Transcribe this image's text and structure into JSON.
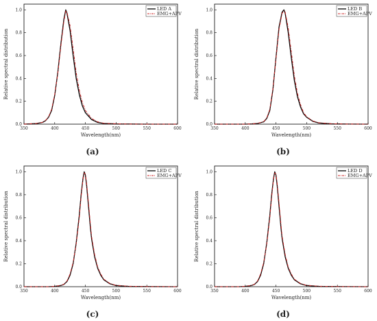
{
  "chart_data": [
    {
      "type": "line",
      "panel_label": "(a)",
      "xlabel": "Wavelength(nm)",
      "ylabel": "Relative spectral distribution",
      "xlim": [
        350,
        600
      ],
      "ylim": [
        0,
        1.05
      ],
      "xticks": [
        "350",
        "400",
        "450",
        "500",
        "550",
        "600"
      ],
      "yticks": [
        "0.0",
        "0.2",
        "0.4",
        "0.6",
        "0.8",
        "1.0"
      ],
      "legend_position": "top-right",
      "series": [
        {
          "name": "LED A",
          "color": "#000000",
          "style": "solid",
          "x": [
            350,
            370,
            380,
            385,
            390,
            395,
            400,
            405,
            410,
            415,
            418,
            420,
            425,
            430,
            435,
            440,
            445,
            450,
            460,
            470,
            480,
            500,
            520,
            550,
            600
          ],
          "y": [
            0,
            0.005,
            0.015,
            0.03,
            0.06,
            0.12,
            0.25,
            0.45,
            0.7,
            0.92,
            1.0,
            0.97,
            0.82,
            0.6,
            0.4,
            0.26,
            0.16,
            0.1,
            0.04,
            0.015,
            0.006,
            0.002,
            0.001,
            0,
            0
          ]
        },
        {
          "name": "EMG+APV",
          "color": "#cc2222",
          "style": "dash-dot",
          "x": [
            350,
            370,
            380,
            385,
            390,
            395,
            400,
            405,
            410,
            415,
            418,
            420,
            425,
            430,
            435,
            440,
            445,
            450,
            460,
            470,
            480,
            500,
            520,
            550,
            600
          ],
          "y": [
            0,
            0.006,
            0.016,
            0.032,
            0.065,
            0.13,
            0.26,
            0.44,
            0.68,
            0.9,
            0.99,
            0.98,
            0.86,
            0.66,
            0.45,
            0.3,
            0.19,
            0.12,
            0.05,
            0.02,
            0.008,
            0.003,
            0.001,
            0,
            0
          ]
        }
      ]
    },
    {
      "type": "line",
      "panel_label": "(b)",
      "xlabel": "Wavelength(nm)",
      "ylabel": "Relative spectral distribution",
      "xlim": [
        350,
        600
      ],
      "ylim": [
        0,
        1.05
      ],
      "xticks": [
        "350",
        "400",
        "450",
        "500",
        "550",
        "600"
      ],
      "yticks": [
        "0.0",
        "0.2",
        "0.4",
        "0.6",
        "0.8",
        "1.0"
      ],
      "legend_position": "top-right",
      "series": [
        {
          "name": "LED B",
          "color": "#000000",
          "style": "solid",
          "x": [
            350,
            400,
            410,
            420,
            430,
            435,
            440,
            445,
            450,
            455,
            460,
            463,
            465,
            470,
            475,
            480,
            485,
            490,
            495,
            500,
            510,
            520,
            540,
            560,
            600
          ],
          "y": [
            0,
            0,
            0.002,
            0.006,
            0.02,
            0.05,
            0.12,
            0.3,
            0.58,
            0.85,
            0.98,
            1.0,
            0.97,
            0.8,
            0.58,
            0.38,
            0.24,
            0.15,
            0.09,
            0.06,
            0.025,
            0.01,
            0.003,
            0.001,
            0
          ]
        },
        {
          "name": "EMG+APV",
          "color": "#cc2222",
          "style": "dash-dot",
          "x": [
            350,
            400,
            410,
            420,
            430,
            435,
            440,
            445,
            450,
            455,
            460,
            463,
            465,
            470,
            475,
            480,
            485,
            490,
            495,
            500,
            510,
            520,
            540,
            560,
            600
          ],
          "y": [
            0,
            0,
            0.002,
            0.007,
            0.022,
            0.055,
            0.13,
            0.31,
            0.57,
            0.83,
            0.97,
            0.99,
            0.98,
            0.84,
            0.63,
            0.42,
            0.27,
            0.17,
            0.1,
            0.065,
            0.028,
            0.012,
            0.004,
            0.001,
            0
          ]
        }
      ]
    },
    {
      "type": "line",
      "panel_label": "(c)",
      "xlabel": "Wavelength(nm)",
      "ylabel": "Relative spectral distribution",
      "xlim": [
        350,
        600
      ],
      "ylim": [
        0,
        1.05
      ],
      "xticks": [
        "350",
        "400",
        "450",
        "500",
        "550",
        "600"
      ],
      "yticks": [
        "0.0",
        "0.2",
        "0.4",
        "0.6",
        "0.8",
        "1.0"
      ],
      "legend_position": "top-right",
      "series": [
        {
          "name": "LED C",
          "color": "#000000",
          "style": "solid",
          "x": [
            350,
            390,
            400,
            410,
            415,
            420,
            425,
            430,
            435,
            440,
            443,
            446,
            448,
            450,
            452,
            455,
            458,
            460,
            465,
            470,
            475,
            480,
            490,
            500,
            520,
            550,
            600
          ],
          "y": [
            0,
            0,
            0.003,
            0.01,
            0.02,
            0.045,
            0.1,
            0.2,
            0.38,
            0.62,
            0.8,
            0.94,
            1.0,
            0.97,
            0.88,
            0.7,
            0.52,
            0.42,
            0.26,
            0.16,
            0.1,
            0.06,
            0.025,
            0.01,
            0.003,
            0.001,
            0
          ]
        },
        {
          "name": "EMG+APV",
          "color": "#cc2222",
          "style": "dash-dot",
          "x": [
            350,
            390,
            400,
            410,
            415,
            420,
            425,
            430,
            435,
            440,
            443,
            446,
            448,
            450,
            452,
            455,
            458,
            460,
            465,
            470,
            475,
            480,
            490,
            500,
            520,
            550,
            600
          ],
          "y": [
            0,
            0,
            0.003,
            0.011,
            0.022,
            0.05,
            0.11,
            0.21,
            0.37,
            0.6,
            0.78,
            0.93,
            0.99,
            0.98,
            0.9,
            0.73,
            0.55,
            0.44,
            0.28,
            0.17,
            0.11,
            0.065,
            0.028,
            0.012,
            0.004,
            0.001,
            0
          ]
        }
      ]
    },
    {
      "type": "line",
      "panel_label": "(d)",
      "xlabel": "Wavelength(nm)",
      "ylabel": "Relative spectral distribution",
      "xlim": [
        350,
        600
      ],
      "ylim": [
        0,
        1.05
      ],
      "xticks": [
        "350",
        "400",
        "450",
        "500",
        "550",
        "600"
      ],
      "yticks": [
        "0.0",
        "0.2",
        "0.4",
        "0.6",
        "0.8",
        "1.0"
      ],
      "legend_position": "top-right",
      "series": [
        {
          "name": "LED D",
          "color": "#000000",
          "style": "solid",
          "x": [
            350,
            390,
            400,
            410,
            415,
            420,
            425,
            430,
            435,
            440,
            443,
            446,
            448,
            450,
            452,
            455,
            458,
            460,
            465,
            470,
            475,
            480,
            490,
            500,
            520,
            550,
            600
          ],
          "y": [
            0,
            0,
            0.003,
            0.01,
            0.02,
            0.045,
            0.1,
            0.2,
            0.38,
            0.62,
            0.8,
            0.94,
            1.0,
            0.97,
            0.88,
            0.7,
            0.52,
            0.42,
            0.26,
            0.16,
            0.1,
            0.06,
            0.025,
            0.01,
            0.003,
            0.001,
            0
          ]
        },
        {
          "name": "EMG+APV",
          "color": "#cc2222",
          "style": "dash-dot",
          "x": [
            350,
            390,
            400,
            410,
            415,
            420,
            425,
            430,
            435,
            440,
            443,
            446,
            448,
            450,
            452,
            455,
            458,
            460,
            465,
            470,
            475,
            480,
            490,
            500,
            520,
            550,
            600
          ],
          "y": [
            0,
            0,
            0.003,
            0.011,
            0.022,
            0.05,
            0.11,
            0.21,
            0.37,
            0.6,
            0.78,
            0.93,
            0.99,
            0.98,
            0.9,
            0.73,
            0.55,
            0.44,
            0.28,
            0.17,
            0.11,
            0.065,
            0.028,
            0.012,
            0.004,
            0.001,
            0
          ]
        }
      ]
    }
  ]
}
